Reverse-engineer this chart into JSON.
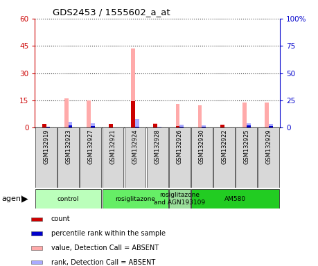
{
  "title": "GDS2453 / 1555602_a_at",
  "samples": [
    "GSM132919",
    "GSM132923",
    "GSM132927",
    "GSM132921",
    "GSM132924",
    "GSM132928",
    "GSM132926",
    "GSM132930",
    "GSM132922",
    "GSM132925",
    "GSM132929"
  ],
  "absent_count_values": [
    2.0,
    16.0,
    15.0,
    2.0,
    43.5,
    2.5,
    13.0,
    12.5,
    1.5,
    14.0,
    14.0
  ],
  "absent_rank_values": [
    1.0,
    5.0,
    4.0,
    0.5,
    8.0,
    1.0,
    3.0,
    2.0,
    0.5,
    4.0,
    3.5
  ],
  "count_values": [
    2.0,
    0.0,
    0.0,
    2.0,
    14.5,
    2.0,
    1.0,
    0.0,
    1.5,
    0.0,
    0.0
  ],
  "rank_values": [
    1.0,
    2.0,
    1.5,
    0.5,
    1.0,
    0.5,
    1.0,
    0.8,
    0.5,
    2.0,
    1.5
  ],
  "ylim_left": [
    0,
    60
  ],
  "ylim_right": [
    0,
    100
  ],
  "yticks_left": [
    0,
    15,
    30,
    45,
    60
  ],
  "ytick_labels_left": [
    "0",
    "15",
    "30",
    "45",
    "60"
  ],
  "yticks_right": [
    0,
    25,
    50,
    75,
    100
  ],
  "ytick_labels_right": [
    "0",
    "25",
    "50",
    "75",
    "100%"
  ],
  "bar_width": 0.18,
  "agent_groups": [
    {
      "label": "control",
      "start": 0,
      "end": 3,
      "color": "#bbffbb"
    },
    {
      "label": "rosiglitazone",
      "start": 3,
      "end": 6,
      "color": "#66ee66"
    },
    {
      "label": "rosiglitazone\nand AGN193109",
      "start": 6,
      "end": 7,
      "color": "#99dd99"
    },
    {
      "label": "AM580",
      "start": 7,
      "end": 11,
      "color": "#22cc22"
    }
  ],
  "legend_items": [
    {
      "color": "#cc0000",
      "label": "count"
    },
    {
      "color": "#0000cc",
      "label": "percentile rank within the sample"
    },
    {
      "color": "#ffaaaa",
      "label": "value, Detection Call = ABSENT"
    },
    {
      "color": "#aaaaff",
      "label": "rank, Detection Call = ABSENT"
    }
  ],
  "left_axis_color": "#cc0000",
  "right_axis_color": "#0000cc",
  "plot_bg_color": "#ffffff"
}
